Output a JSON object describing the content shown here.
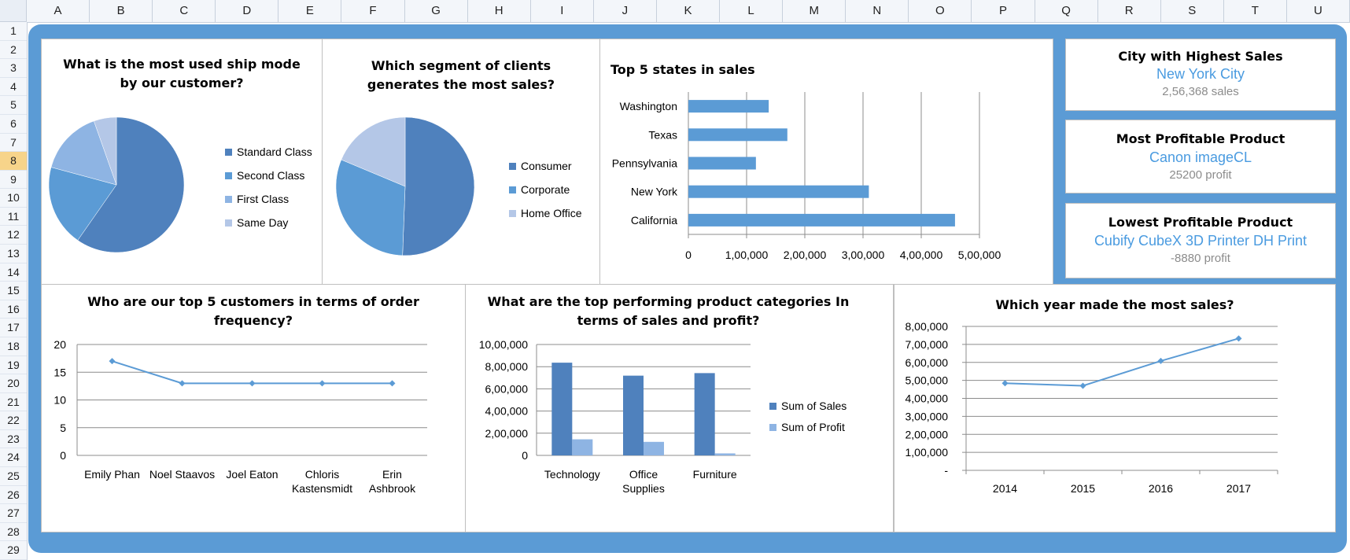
{
  "spreadsheet": {
    "columns": [
      "A",
      "B",
      "C",
      "D",
      "E",
      "F",
      "G",
      "H",
      "I",
      "J",
      "K",
      "L",
      "M",
      "N",
      "O",
      "P",
      "Q",
      "R",
      "S",
      "T",
      "U"
    ],
    "rows": [
      "1",
      "2",
      "3",
      "4",
      "5",
      "6",
      "7",
      "8",
      "9",
      "10",
      "11",
      "12",
      "13",
      "14",
      "15",
      "16",
      "17",
      "18",
      "19",
      "20",
      "21",
      "22",
      "23",
      "24",
      "25",
      "26",
      "27",
      "28",
      "29"
    ],
    "selected_row": "8"
  },
  "ship_mode": {
    "title_line1": "What is the most used ship mode",
    "title_line2": "by our customer?",
    "legend": [
      "Standard Class",
      "Second Class",
      "First Class",
      "Same Day"
    ]
  },
  "segment": {
    "title_line1": "Which segment of clients",
    "title_line2": "generates the most sales?",
    "legend": [
      "Consumer",
      "Corporate",
      "Home Office"
    ]
  },
  "states": {
    "title": "Top 5 states in sales"
  },
  "kpis": [
    {
      "title": "City with Highest Sales",
      "value": "New York City",
      "sub": "2,56,368 sales"
    },
    {
      "title": "Most Profitable Product",
      "value": "Canon imageCL",
      "sub": "25200 profit"
    },
    {
      "title": "Lowest Profitable Product",
      "value": "Cubify CubeX 3D Printer DH Print",
      "sub": "-8880 profit"
    }
  ],
  "customers": {
    "title_line1": "Who are our top 5 customers in terms of order",
    "title_line2": "frequency?"
  },
  "categories": {
    "title_line1": "What are the top performing product categories In",
    "title_line2": "terms of sales and profit?"
  },
  "years": {
    "title": "Which year made the most sales?"
  },
  "colors": {
    "dark": "#4f81bd",
    "mid": "#5b9bd5",
    "light": "#8eb4e3",
    "lighter": "#b4c7e7",
    "kpi_value": "#4a9be0"
  },
  "chart_data": [
    {
      "type": "pie",
      "categories": [
        "Standard Class",
        "Second Class",
        "First Class",
        "Same Day"
      ],
      "values": [
        59.7,
        19.5,
        15.4,
        5.4
      ]
    },
    {
      "type": "pie",
      "categories": [
        "Consumer",
        "Corporate",
        "Home Office"
      ],
      "values": [
        50.6,
        30.7,
        18.7
      ]
    },
    {
      "type": "bar",
      "orientation": "horizontal",
      "categories": [
        "Washington",
        "Texas",
        "Pennsylvania",
        "New York",
        "California"
      ],
      "values": [
        138000,
        170000,
        116000,
        310000,
        458000
      ],
      "xlim": [
        0,
        500000
      ],
      "xticks": [
        "0",
        "1,00,000",
        "2,00,000",
        "3,00,000",
        "4,00,000",
        "5,00,000"
      ],
      "grid": true
    },
    {
      "type": "line",
      "categories": [
        "Emily Phan",
        "Noel Staavos",
        "Joel Eaton",
        "Chloris Kastensmidt",
        "Erin Ashbrook"
      ],
      "category_lines": [
        [
          "Emily Phan"
        ],
        [
          "Noel Staavos"
        ],
        [
          "Joel Eaton"
        ],
        [
          "Chloris",
          "Kastensmidt"
        ],
        [
          "Erin",
          "Ashbrook"
        ]
      ],
      "values": [
        17,
        13,
        13,
        13,
        13
      ],
      "ylim": [
        0,
        20
      ],
      "yticks": [
        "0",
        "5",
        "10",
        "15",
        "20"
      ],
      "grid": true
    },
    {
      "type": "bar",
      "categories": [
        "Technology",
        "Office Supplies",
        "Furniture"
      ],
      "category_lines": [
        [
          "Technology"
        ],
        [
          "Office",
          "Supplies"
        ],
        [
          "Furniture"
        ]
      ],
      "series": [
        {
          "name": "Sum of Sales",
          "values": [
            836000,
            719000,
            742000
          ]
        },
        {
          "name": "Sum of Profit",
          "values": [
            145000,
            122000,
            18000
          ]
        }
      ],
      "ylim": [
        0,
        1000000
      ],
      "yticks": [
        "0",
        "2,00,000",
        "4,00,000",
        "6,00,000",
        "8,00,000",
        "10,00,000"
      ],
      "legend": "right",
      "grid": true
    },
    {
      "type": "line",
      "categories": [
        "2014",
        "2015",
        "2016",
        "2017"
      ],
      "values": [
        484000,
        470000,
        608000,
        733000
      ],
      "ylim": [
        0,
        800000
      ],
      "yticks": [
        "-",
        "1,00,000",
        "2,00,000",
        "3,00,000",
        "4,00,000",
        "5,00,000",
        "6,00,000",
        "7,00,000",
        "8,00,000"
      ],
      "grid": true
    }
  ]
}
